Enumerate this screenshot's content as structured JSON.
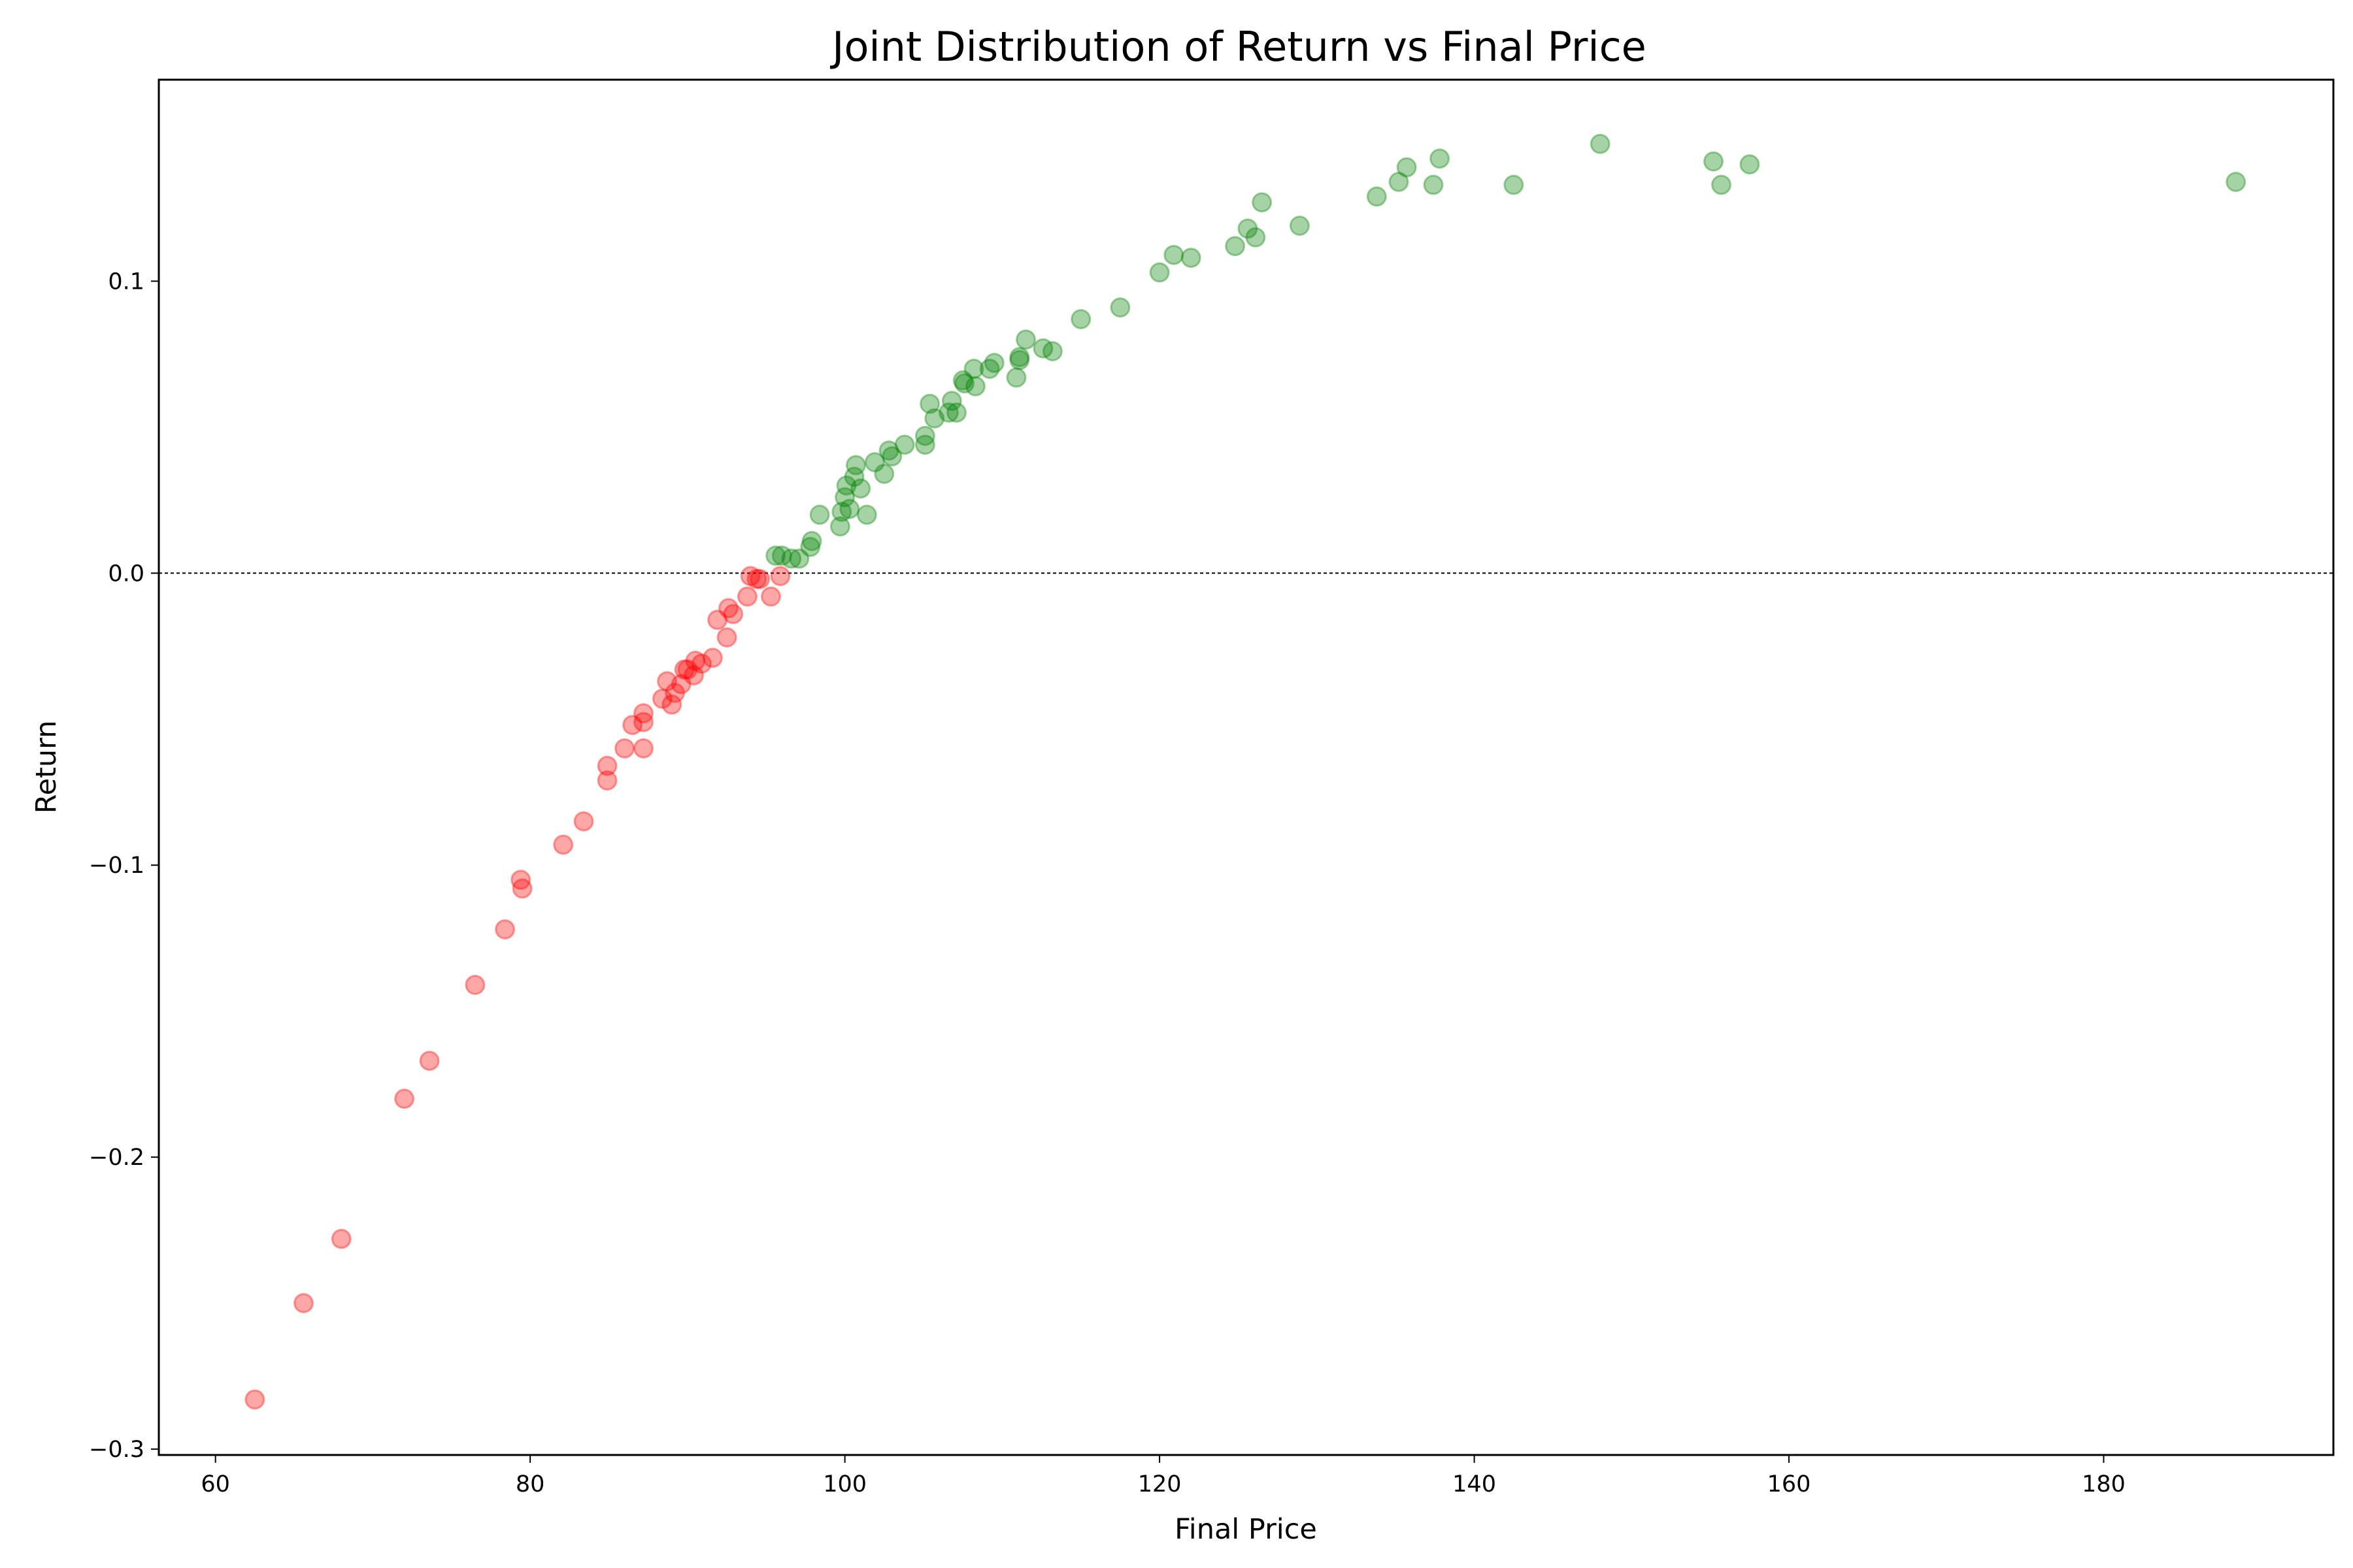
{
  "chart_data": {
    "type": "scatter",
    "title": "Joint Distribution of Return vs Final Price",
    "xlabel": "Final Price",
    "ylabel": "Return",
    "xlim": [
      56.4,
      194.6
    ],
    "ylim": [
      -0.302,
      0.169
    ],
    "xticks": [
      60,
      80,
      100,
      120,
      140,
      160,
      180
    ],
    "yticks": [
      -0.3,
      -0.2,
      -0.1,
      0.0,
      0.1
    ],
    "xtick_labels": [
      "60",
      "80",
      "100",
      "120",
      "140",
      "160",
      "180"
    ],
    "ytick_labels": [
      "−0.3",
      "−0.2",
      "−0.1",
      "0.0",
      "0.1"
    ],
    "zero_line": true,
    "grid": false,
    "colors": {
      "positive": "#008000",
      "negative": "#ff0000",
      "zero_line": "#000000"
    },
    "point_alpha": 0.35,
    "series": [
      {
        "points": [
          [
            62.5,
            -0.283
          ],
          [
            65.6,
            -0.25
          ],
          [
            68.0,
            -0.228
          ],
          [
            72.0,
            -0.18
          ],
          [
            73.6,
            -0.167
          ],
          [
            76.5,
            -0.141
          ],
          [
            78.4,
            -0.122
          ],
          [
            79.4,
            -0.105
          ],
          [
            79.5,
            -0.108
          ],
          [
            82.1,
            -0.093
          ],
          [
            83.4,
            -0.085
          ],
          [
            84.9,
            -0.066
          ],
          [
            84.9,
            -0.071
          ],
          [
            86.0,
            -0.06
          ],
          [
            86.5,
            -0.052
          ],
          [
            87.2,
            -0.048
          ],
          [
            87.2,
            -0.051
          ],
          [
            87.2,
            -0.06
          ],
          [
            88.4,
            -0.043
          ],
          [
            88.7,
            -0.037
          ],
          [
            89.0,
            -0.045
          ],
          [
            89.2,
            -0.041
          ],
          [
            89.6,
            -0.038
          ],
          [
            89.8,
            -0.033
          ],
          [
            90.0,
            -0.033
          ],
          [
            90.4,
            -0.035
          ],
          [
            90.5,
            -0.03
          ],
          [
            90.9,
            -0.031
          ],
          [
            91.6,
            -0.029
          ],
          [
            91.9,
            -0.016
          ],
          [
            92.5,
            -0.022
          ],
          [
            92.6,
            -0.012
          ],
          [
            92.9,
            -0.014
          ],
          [
            93.8,
            -0.008
          ],
          [
            94.0,
            -0.001
          ],
          [
            94.4,
            -0.002
          ],
          [
            94.6,
            -0.002
          ],
          [
            95.3,
            -0.008
          ],
          [
            95.9,
            -0.001
          ]
        ]
      },
      {
        "points": [
          [
            95.6,
            0.006
          ],
          [
            96.0,
            0.006
          ],
          [
            96.6,
            0.005
          ],
          [
            97.1,
            0.005
          ],
          [
            97.8,
            0.009
          ],
          [
            97.9,
            0.011
          ],
          [
            98.4,
            0.02
          ],
          [
            99.7,
            0.016
          ],
          [
            99.8,
            0.021
          ],
          [
            100.0,
            0.026
          ],
          [
            100.1,
            0.03
          ],
          [
            100.3,
            0.022
          ],
          [
            100.6,
            0.033
          ],
          [
            100.7,
            0.037
          ],
          [
            101.0,
            0.029
          ],
          [
            101.4,
            0.02
          ],
          [
            101.9,
            0.038
          ],
          [
            102.5,
            0.034
          ],
          [
            102.8,
            0.042
          ],
          [
            103.0,
            0.04
          ],
          [
            103.8,
            0.044
          ],
          [
            105.1,
            0.044
          ],
          [
            105.1,
            0.047
          ],
          [
            105.4,
            0.058
          ],
          [
            105.7,
            0.053
          ],
          [
            106.6,
            0.055
          ],
          [
            106.8,
            0.059
          ],
          [
            107.1,
            0.055
          ],
          [
            107.5,
            0.066
          ],
          [
            107.6,
            0.065
          ],
          [
            108.2,
            0.07
          ],
          [
            108.3,
            0.064
          ],
          [
            109.2,
            0.07
          ],
          [
            109.5,
            0.072
          ],
          [
            110.9,
            0.067
          ],
          [
            111.1,
            0.073
          ],
          [
            111.1,
            0.074
          ],
          [
            111.5,
            0.08
          ],
          [
            112.6,
            0.077
          ],
          [
            113.2,
            0.076
          ],
          [
            115.0,
            0.087
          ],
          [
            117.5,
            0.091
          ],
          [
            120.0,
            0.103
          ],
          [
            120.9,
            0.109
          ],
          [
            122.0,
            0.108
          ],
          [
            124.8,
            0.112
          ],
          [
            125.6,
            0.118
          ],
          [
            126.1,
            0.115
          ],
          [
            126.5,
            0.127
          ],
          [
            128.9,
            0.119
          ],
          [
            133.8,
            0.129
          ],
          [
            135.2,
            0.134
          ],
          [
            135.7,
            0.139
          ],
          [
            137.4,
            0.133
          ],
          [
            137.8,
            0.142
          ],
          [
            142.5,
            0.133
          ],
          [
            148.0,
            0.147
          ],
          [
            155.2,
            0.141
          ],
          [
            155.7,
            0.133
          ],
          [
            157.5,
            0.14
          ],
          [
            188.4,
            0.134
          ]
        ]
      }
    ]
  }
}
